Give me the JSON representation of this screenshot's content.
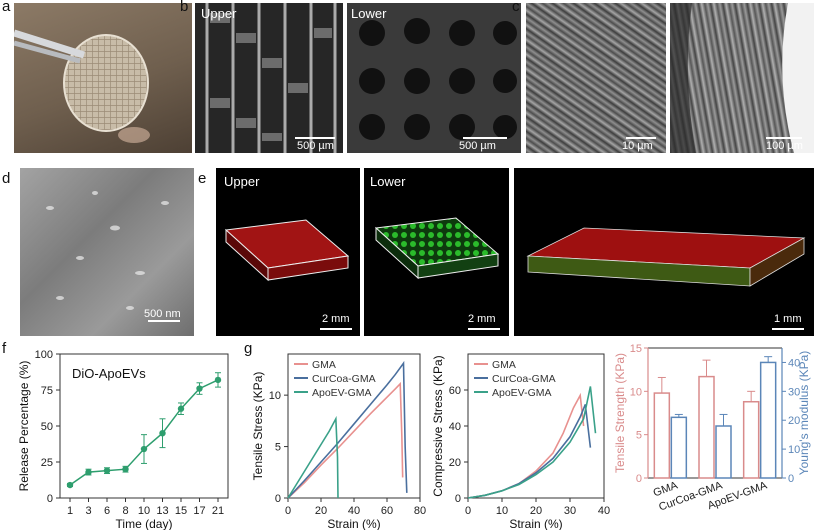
{
  "panels": {
    "a": {
      "label": "a"
    },
    "b": {
      "label": "b",
      "upper": "Upper",
      "lower": "Lower",
      "scale1": "500 µm",
      "scale2": "500 µm"
    },
    "c": {
      "label": "c",
      "scale1": "10 µm",
      "scale2": "100 µm"
    },
    "d": {
      "label": "d",
      "scale": "500 nm"
    },
    "e": {
      "label": "e",
      "upper": "Upper",
      "lower": "Lower",
      "scale1": "2 mm",
      "scale2": "2 mm",
      "scale3": "1 mm"
    },
    "f": {
      "label": "f"
    },
    "g": {
      "label": "g"
    }
  },
  "colors": {
    "gma": "#e8918f",
    "curcoa": "#4a6f9e",
    "apoev": "#3aa189",
    "releaseLine": "#2e9e6e",
    "strengthAxis": "#d98b8b",
    "modulusAxis": "#5b86b8"
  },
  "chart_data": [
    {
      "id": "release",
      "type": "line",
      "annotation": "DiO-ApoEVs",
      "xlabel": "Time (day)",
      "ylabel": "Release Percentage (%)",
      "categories": [
        "1",
        "3",
        "6",
        "8",
        "10",
        "13",
        "15",
        "17",
        "21"
      ],
      "values": [
        9,
        18,
        19,
        20,
        34,
        45,
        62,
        76,
        82
      ],
      "errors": [
        1,
        2,
        2,
        2,
        10,
        10,
        4,
        4,
        5
      ],
      "yticks": [
        "0",
        "25",
        "50",
        "75",
        "100"
      ],
      "ylim": [
        0,
        100
      ]
    },
    {
      "id": "tensile",
      "type": "line",
      "xlabel": "Strain (%)",
      "ylabel": "Tensile Stress (KPa)",
      "xticks": [
        "0",
        "20",
        "40",
        "60",
        "80"
      ],
      "yticks": [
        "0",
        "5",
        "10"
      ],
      "xlim": [
        0,
        80
      ],
      "ylim": [
        0,
        14
      ],
      "series": [
        {
          "name": "GMA",
          "x": [
            0,
            10,
            20,
            30,
            40,
            50,
            60,
            65,
            68,
            69,
            69.5
          ],
          "y": [
            0,
            1.5,
            3.2,
            4.8,
            6.5,
            8.2,
            9.8,
            10.6,
            11.1,
            6,
            2
          ]
        },
        {
          "name": "CurCoa-GMA",
          "x": [
            0,
            10,
            20,
            30,
            40,
            50,
            60,
            65,
            70,
            71,
            72
          ],
          "y": [
            0,
            1.7,
            3.5,
            5.3,
            7.2,
            9.1,
            11.0,
            12.0,
            13.1,
            5,
            0.5
          ]
        },
        {
          "name": "ApoEV-GMA",
          "x": [
            0,
            5,
            10,
            15,
            20,
            25,
            29,
            30,
            30.3
          ],
          "y": [
            0,
            1.3,
            2.6,
            3.9,
            5.2,
            6.5,
            7.7,
            4,
            0
          ]
        }
      ]
    },
    {
      "id": "compressive",
      "type": "line",
      "xlabel": "Strain (%)",
      "ylabel": "Compressive Stress (KPa)",
      "xticks": [
        "0",
        "10",
        "20",
        "30",
        "40"
      ],
      "yticks": [
        "0",
        "20",
        "40",
        "60"
      ],
      "xlim": [
        0,
        40
      ],
      "ylim": [
        0,
        80
      ],
      "series": [
        {
          "name": "GMA",
          "x": [
            0,
            5,
            10,
            15,
            20,
            25,
            28,
            31,
            33,
            34
          ],
          "y": [
            0,
            1.5,
            4,
            8,
            15,
            25,
            36,
            50,
            57,
            40
          ]
        },
        {
          "name": "CurCoa-GMA",
          "x": [
            0,
            5,
            10,
            15,
            20,
            25,
            30,
            33,
            34.5,
            36
          ],
          "y": [
            0,
            1.5,
            4,
            8,
            14,
            22,
            34,
            45,
            52,
            28
          ]
        },
        {
          "name": "ApoEV-GMA",
          "x": [
            0,
            5,
            10,
            15,
            20,
            25,
            30,
            34,
            36,
            37.5
          ],
          "y": [
            0,
            1.5,
            4,
            7.5,
            13,
            20,
            31,
            44,
            62,
            36
          ]
        }
      ]
    },
    {
      "id": "mechanics",
      "type": "bar",
      "categories": [
        "GMA",
        "CurCoa-GMA",
        "ApoEV-GMA"
      ],
      "ylabel": "Tensile Strength (KPa)",
      "y2label": "Young's modulus (KPa)",
      "yticks": [
        "0",
        "5",
        "10",
        "15"
      ],
      "y2ticks": [
        "0",
        "10",
        "20",
        "30",
        "40"
      ],
      "ylim": [
        0,
        15
      ],
      "y2lim": [
        0,
        45
      ],
      "series": [
        {
          "name": "Tensile Strength",
          "values": [
            9.8,
            11.7,
            8.8
          ],
          "errors": [
            1.8,
            1.9,
            1.2
          ]
        },
        {
          "name": "Young's modulus",
          "values": [
            21,
            18,
            40
          ],
          "errors": [
            1,
            4,
            2
          ]
        }
      ]
    }
  ]
}
